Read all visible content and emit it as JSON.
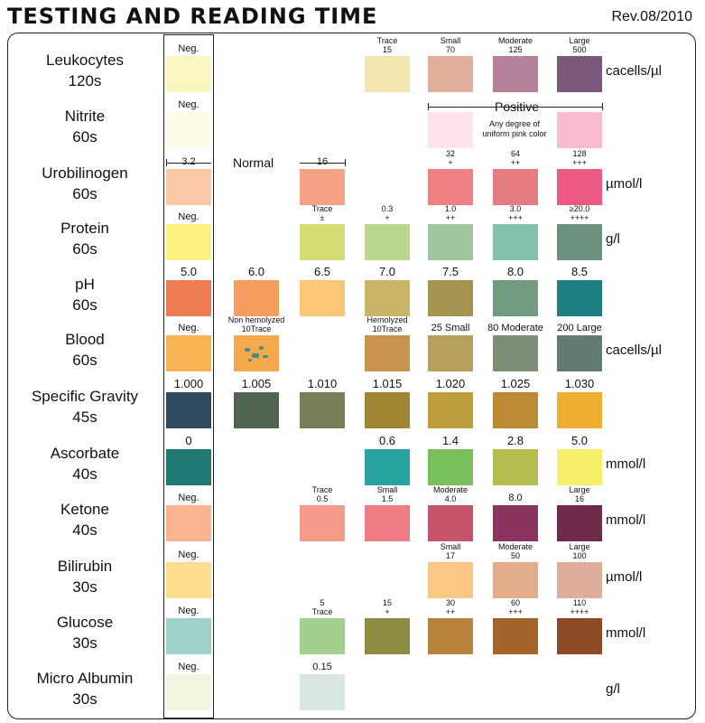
{
  "title": "TESTING AND READING TIME",
  "revision": "Rev.08/2010",
  "notes": {
    "normal": "Normal",
    "positive": "Positive",
    "pink": "Any degree of uniform pink color"
  },
  "rows": [
    {
      "name": "Leukocytes",
      "time": "120s",
      "unit": "cacells/µl",
      "cells": [
        {
          "lines": [
            "Neg."
          ],
          "color": "#FBF6C2"
        },
        {
          "lines": [
            "Trace",
            "15"
          ],
          "color": "#F1E6B0"
        },
        {
          "lines": [
            "Small",
            "70"
          ],
          "color": "#DFAF9A"
        },
        {
          "lines": [
            "Moderate",
            "125"
          ],
          "color": "#B6819B"
        },
        {
          "lines": [
            "Large",
            "500"
          ],
          "color": "#7A5A78"
        }
      ]
    },
    {
      "name": "Nitrite",
      "time": "60s",
      "unit": "",
      "cells": [
        {
          "lines": [
            "Neg."
          ],
          "color": "#FEFCE8"
        },
        {
          "lines": [],
          "color": "#FDE4EA"
        },
        {
          "lines": [],
          "color": "#F9BCCF"
        }
      ]
    },
    {
      "name": "Urobilinogen",
      "time": "60s",
      "unit": "µmol/l",
      "cells": [
        {
          "lines": [
            "3.2"
          ],
          "color": "#FBC9A5"
        },
        {
          "lines": [
            "16"
          ],
          "color": "#F5A286"
        },
        {
          "lines": [
            "32",
            "+"
          ],
          "color": "#EF8183"
        },
        {
          "lines": [
            "64",
            "++"
          ],
          "color": "#E77B83"
        },
        {
          "lines": [
            "128",
            "+++"
          ],
          "color": "#EB5A82"
        }
      ]
    },
    {
      "name": "Protein",
      "time": "60s",
      "unit": "g/l",
      "cells": [
        {
          "lines": [
            "Neg."
          ],
          "color": "#FCF07E"
        },
        {
          "lines": [
            "Trace",
            "±"
          ],
          "color": "#D3DC73"
        },
        {
          "lines": [
            "0.3",
            "+"
          ],
          "color": "#B9D68E"
        },
        {
          "lines": [
            "1.0",
            "++"
          ],
          "color": "#A1C59F"
        },
        {
          "lines": [
            "3.0",
            "+++"
          ],
          "color": "#84C0AE"
        },
        {
          "lines": [
            "≥20.0",
            "++++"
          ],
          "color": "#6C927F"
        }
      ]
    },
    {
      "name": "pH",
      "time": "60s",
      "unit": "",
      "cells": [
        {
          "lines": [
            "5.0"
          ],
          "color": "#EE7C53"
        },
        {
          "lines": [
            "6.0"
          ],
          "color": "#F49D5C"
        },
        {
          "lines": [
            "6.5"
          ],
          "color": "#FBC677"
        },
        {
          "lines": [
            "7.0"
          ],
          "color": "#CAB468"
        },
        {
          "lines": [
            "7.5"
          ],
          "color": "#A3944F"
        },
        {
          "lines": [
            "8.0"
          ],
          "color": "#719C7F"
        },
        {
          "lines": [
            "8.5"
          ],
          "color": "#1E7E83"
        }
      ]
    },
    {
      "name": "Blood",
      "time": "60s",
      "unit": "cacells/µl",
      "cells": [
        {
          "lines": [
            "Neg."
          ],
          "color": "#F8B454"
        },
        {
          "lines": [
            "Non hemolyzed",
            "10Trace"
          ],
          "color": "#F4AA4C"
        },
        {
          "lines": [
            "Hemolyzed",
            "10Trace"
          ],
          "color": "#C6944E"
        },
        {
          "lines": [
            "25 Small"
          ],
          "color": "#B7A05C"
        },
        {
          "lines": [
            "80 Moderate"
          ],
          "color": "#7E8E76"
        },
        {
          "lines": [
            "200 Large"
          ],
          "color": "#657A70"
        }
      ]
    },
    {
      "name": "Specific Gravity",
      "time": "45s",
      "unit": "",
      "cells": [
        {
          "lines": [
            "1.000"
          ],
          "color": "#2F4A5E"
        },
        {
          "lines": [
            "1.005"
          ],
          "color": "#4F6552"
        },
        {
          "lines": [
            "1.010"
          ],
          "color": "#7A7E57"
        },
        {
          "lines": [
            "1.015"
          ],
          "color": "#A28532"
        },
        {
          "lines": [
            "1.020"
          ],
          "color": "#BE9E3C"
        },
        {
          "lines": [
            "1.025"
          ],
          "color": "#BC8A35"
        },
        {
          "lines": [
            "1.030"
          ],
          "color": "#EFAF2E"
        }
      ]
    },
    {
      "name": "Ascorbate",
      "time": "40s",
      "unit": "mmol/l",
      "cells": [
        {
          "lines": [
            "0"
          ],
          "color": "#1F7A74"
        },
        {
          "lines": [
            "0.6"
          ],
          "color": "#2AA3A3"
        },
        {
          "lines": [
            "1.4"
          ],
          "color": "#7AC05A"
        },
        {
          "lines": [
            "2.8"
          ],
          "color": "#B3BD4F"
        },
        {
          "lines": [
            "5.0"
          ],
          "color": "#F7EE6A"
        }
      ]
    },
    {
      "name": "Ketone",
      "time": "40s",
      "unit": "mmol/l",
      "cells": [
        {
          "lines": [
            "Neg."
          ],
          "color": "#FBB48F"
        },
        {
          "lines": [
            "Trace",
            "0.5"
          ],
          "color": "#F49C89"
        },
        {
          "lines": [
            "Small",
            "1.5"
          ],
          "color": "#EF7C85"
        },
        {
          "lines": [
            "Moderate",
            "4.0"
          ],
          "color": "#C65369"
        },
        {
          "lines": [
            "8.0"
          ],
          "color": "#8B3460"
        },
        {
          "lines": [
            "Large",
            "16"
          ],
          "color": "#6D2A4B"
        }
      ]
    },
    {
      "name": "Bilirubin",
      "time": "30s",
      "unit": "µmol/l",
      "cells": [
        {
          "lines": [
            "Neg."
          ],
          "color": "#FDDC8E"
        },
        {
          "lines": [
            "Small",
            "17"
          ],
          "color": "#FBC783"
        },
        {
          "lines": [
            "Moderate",
            "50"
          ],
          "color": "#E3AC8A"
        },
        {
          "lines": [
            "Large",
            "100"
          ],
          "color": "#DDAE9C"
        }
      ]
    },
    {
      "name": "Glucose",
      "time": "30s",
      "unit": "mmol/l",
      "cells": [
        {
          "lines": [
            "Neg."
          ],
          "color": "#9FD3C9"
        },
        {
          "lines": [
            "5",
            "Trace"
          ],
          "color": "#A3CE8C"
        },
        {
          "lines": [
            "15",
            "+"
          ],
          "color": "#8D8C40"
        },
        {
          "lines": [
            "30",
            "++"
          ],
          "color": "#B9823C"
        },
        {
          "lines": [
            "60",
            "+++"
          ],
          "color": "#A3632B"
        },
        {
          "lines": [
            "110",
            "++++"
          ],
          "color": "#8E4A26"
        }
      ]
    },
    {
      "name": "Micro Albumin",
      "time": "30s",
      "unit": "g/l",
      "cells": [
        {
          "lines": [
            "Neg."
          ],
          "color": "#F1F6E1"
        },
        {
          "lines": [
            "0.15"
          ],
          "color": "#D8E8E0"
        }
      ]
    }
  ]
}
